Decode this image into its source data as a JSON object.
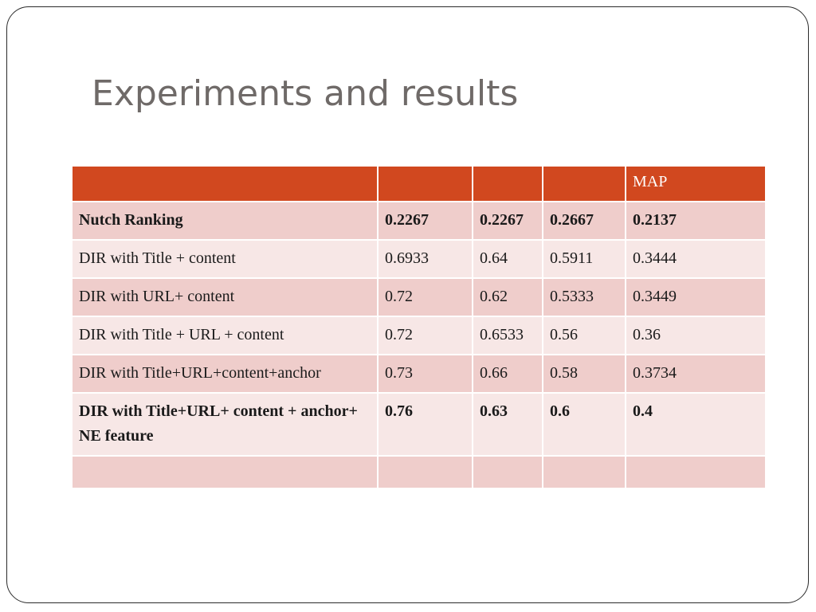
{
  "slide": {
    "title": "Experiments and results"
  },
  "table": {
    "header": [
      "",
      "",
      "",
      "",
      "MAP"
    ],
    "rows": [
      [
        "Nutch Ranking",
        "0.2267",
        "0.2267",
        "0.2667",
        "0.2137"
      ],
      [
        "DIR with Title + content",
        "0.6933",
        "0.64",
        "0.5911",
        "0.3444"
      ],
      [
        "DIR with URL+ content",
        "0.72",
        "0.62",
        "0.5333",
        "0.3449"
      ],
      [
        "DIR with Title + URL + content",
        "0.72",
        "0.6533",
        "0.56",
        "0.36"
      ],
      [
        "DIR with Title+URL+content+anchor",
        "0.73",
        "0.66",
        "0.58",
        "0.3734"
      ],
      [
        "DIR with Title+URL+ content + anchor+ NE feature",
        "0.76",
        "0.63",
        "0.6",
        "0.4"
      ],
      [
        "",
        "",
        "",
        "",
        ""
      ]
    ]
  },
  "colors": {
    "header_bg": "#d1481f",
    "row_dark": "#efcdcb",
    "row_light": "#f7e7e6",
    "title_text": "#6f6a68",
    "border": "#2b2b2b"
  }
}
